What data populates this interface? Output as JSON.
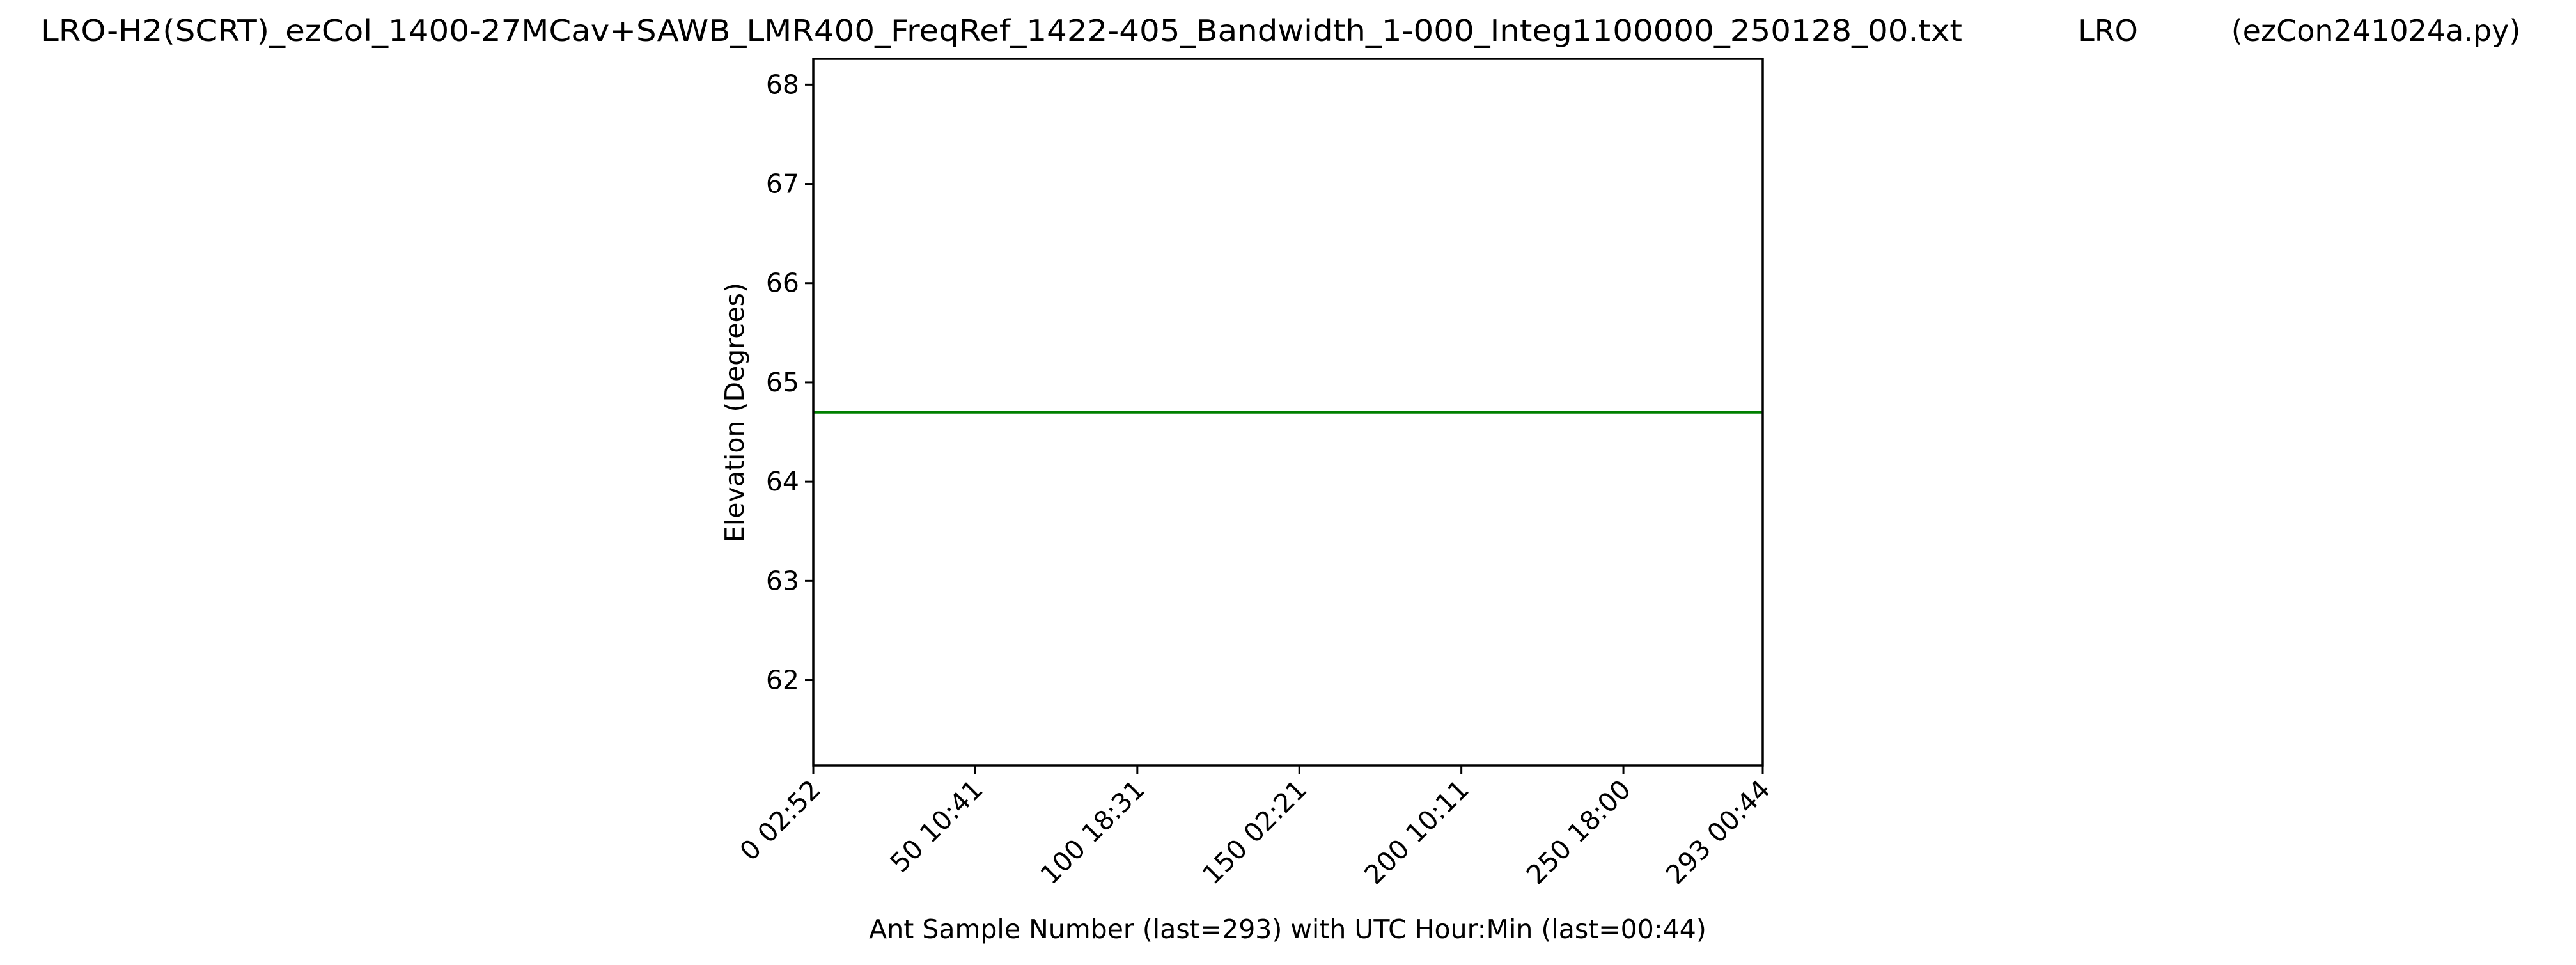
{
  "chart_data": {
    "type": "line",
    "title": "LRO-H2(SCRT)_ezCol_1400-27MCav+SAWB_LMR400_FreqRef_1422-405_Bandwidth_1-000_Integ1100000_250128_00.txt",
    "title_site": "LRO",
    "title_program": "(ezCon241024a.py)",
    "xlabel": "Ant Sample Number (last=293) with UTC Hour:Min (last=00:44)",
    "ylabel": "Elevation (Degrees)",
    "x": [
      0,
      293
    ],
    "series": [
      {
        "color": "green",
        "values": [
          64.7,
          64.7
        ]
      }
    ],
    "xlim": [
      0,
      293
    ],
    "ylim": [
      61.14,
      68.26
    ],
    "xticks": [
      {
        "value": 0,
        "label": "0  02:52"
      },
      {
        "value": 50,
        "label": "50  10:41"
      },
      {
        "value": 100,
        "label": "100  18:31"
      },
      {
        "value": 150,
        "label": "150  02:21"
      },
      {
        "value": 200,
        "label": "200  10:11"
      },
      {
        "value": 250,
        "label": "250  18:00"
      },
      {
        "value": 293,
        "label": "293  00:44"
      }
    ],
    "yticks": [
      62,
      63,
      64,
      65,
      66,
      67,
      68
    ],
    "grid": false
  }
}
